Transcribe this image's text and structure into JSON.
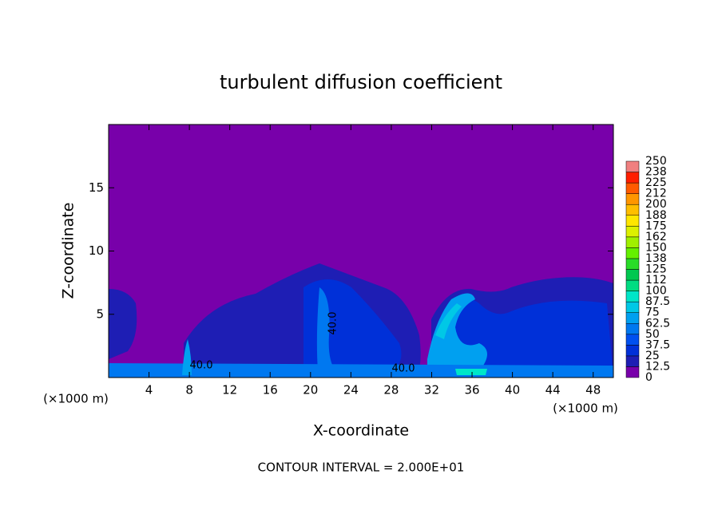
{
  "chart_data": {
    "type": "contour",
    "title": "turbulent diffusion coefficient",
    "xlabel": "X-coordinate",
    "ylabel": "Z-coordinate",
    "x_unit": "(×1000 m)",
    "x_unit_right": "(×1000 m)",
    "note": "CONTOUR INTERVAL = 2.000E+01",
    "contour_labels": [
      "40.0",
      "40.0",
      "40.0"
    ],
    "xlim": [
      0,
      50
    ],
    "xticks": [
      4,
      8,
      12,
      16,
      20,
      24,
      28,
      32,
      36,
      40,
      44,
      48
    ],
    "ylim": [
      0,
      20
    ],
    "yticks": [
      5,
      10,
      15
    ],
    "colorbar": {
      "levels": [
        0,
        12.5,
        25,
        37.5,
        50,
        62.5,
        75,
        87.5,
        100,
        112,
        125,
        138,
        150,
        162,
        175,
        188,
        200,
        212,
        225,
        238,
        250
      ],
      "colors": [
        "#7800aa",
        "#1e1eb4",
        "#0030d8",
        "#0050f0",
        "#0078f0",
        "#00a0f0",
        "#00c8e6",
        "#00e6c8",
        "#00dc82",
        "#00c850",
        "#28dc28",
        "#64f000",
        "#a0f000",
        "#dcf000",
        "#ffe600",
        "#ffbe00",
        "#ff9600",
        "#ff5a00",
        "#ff1e00",
        "#f08080"
      ]
    }
  }
}
